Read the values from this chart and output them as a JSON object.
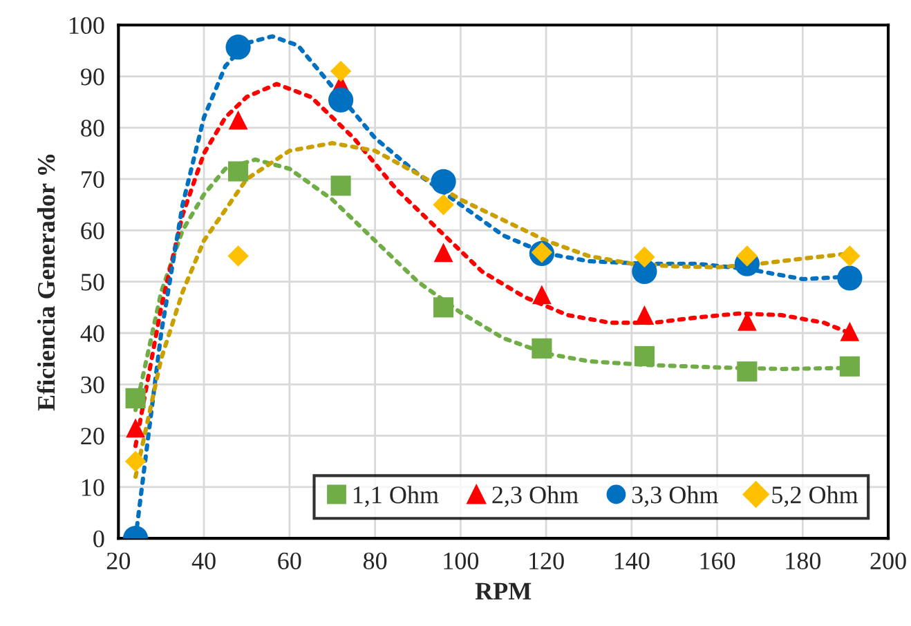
{
  "chart_data": {
    "type": "scatter",
    "xlabel": "RPM",
    "ylabel": "Eficiencia Generador %",
    "xlim": [
      20,
      200
    ],
    "xticks": [
      20,
      40,
      60,
      80,
      100,
      120,
      140,
      160,
      180,
      200
    ],
    "ylim": [
      0,
      100
    ],
    "yticks": [
      0,
      10,
      20,
      30,
      40,
      50,
      60,
      70,
      80,
      90,
      100
    ],
    "grid": true,
    "legend": "bottom right",
    "series": [
      {
        "type": "line",
        "line_style": "dotted",
        "marker": "none",
        "color": "#70ad47",
        "x": [
          24,
          30,
          35,
          40,
          45,
          52,
          60,
          70,
          80,
          90,
          100,
          110,
          120,
          130,
          143,
          160,
          175,
          191
        ],
        "values": [
          25,
          48,
          60,
          67,
          72,
          73.8,
          72,
          66,
          58,
          50,
          44,
          39,
          36,
          34.5,
          33.8,
          33.3,
          33,
          33.2
        ]
      },
      {
        "type": "line",
        "line_style": "dotted",
        "marker": "none",
        "color": "#ff0000",
        "x": [
          24,
          30,
          35,
          40,
          45,
          50,
          57,
          65,
          75,
          85,
          95,
          105,
          115,
          125,
          135,
          145,
          155,
          165,
          175,
          185,
          191
        ],
        "values": [
          18,
          45,
          63,
          75,
          82,
          86,
          88.5,
          86,
          78,
          68,
          60,
          52,
          47,
          43.5,
          42,
          42,
          43,
          43.8,
          43.5,
          42,
          40
        ]
      },
      {
        "type": "line",
        "line_style": "dotted",
        "marker": "none",
        "color": "#0070c0",
        "x": [
          24,
          30,
          35,
          40,
          45,
          50,
          56,
          62,
          70,
          80,
          90,
          100,
          110,
          120,
          130,
          143,
          155,
          167,
          180,
          191
        ],
        "values": [
          0,
          40,
          65,
          82,
          92,
          96.5,
          97.8,
          96,
          88,
          78,
          71,
          65,
          59,
          55.5,
          54,
          53.5,
          53.5,
          52.5,
          50.5,
          51
        ]
      },
      {
        "type": "line",
        "line_style": "dotted",
        "marker": "none",
        "color": "#c9a000",
        "x": [
          24,
          30,
          35,
          40,
          50,
          60,
          70,
          80,
          90,
          100,
          110,
          120,
          130,
          140,
          150,
          160,
          170,
          180,
          191
        ],
        "values": [
          12,
          35,
          48,
          58,
          70,
          75.5,
          77,
          75.5,
          71,
          66,
          62,
          58,
          55,
          53.5,
          53,
          52.8,
          53.5,
          54.5,
          55.5
        ]
      },
      {
        "name": "1,1 Ohm",
        "marker": "square",
        "color": "#70ad47",
        "x": [
          24,
          48,
          72,
          96,
          119,
          143,
          167,
          191
        ],
        "values": [
          27.3,
          71.5,
          68.7,
          45,
          37,
          35.5,
          32.5,
          33.5
        ]
      },
      {
        "name": "2,3 Ohm",
        "marker": "triangle",
        "color": "#ff0000",
        "x": [
          24,
          48,
          72,
          96,
          119,
          143,
          167,
          191
        ],
        "values": [
          21.5,
          81.5,
          88.5,
          55.7,
          47.5,
          43.5,
          42.3,
          40.3
        ]
      },
      {
        "name": "3,3 Ohm",
        "marker": "circle",
        "color": "#0070c0",
        "x": [
          24,
          48,
          72,
          96,
          119,
          143,
          167,
          191
        ],
        "values": [
          0,
          95.7,
          85.4,
          69.5,
          55.5,
          52,
          53.5,
          50.7
        ]
      },
      {
        "name": "5,2 Ohm",
        "marker": "diamond",
        "color": "#ffc000",
        "x": [
          24,
          48,
          72,
          96,
          119,
          143,
          167,
          191
        ],
        "values": [
          15,
          55,
          91,
          65,
          55.7,
          54.8,
          55,
          55
        ]
      }
    ]
  }
}
